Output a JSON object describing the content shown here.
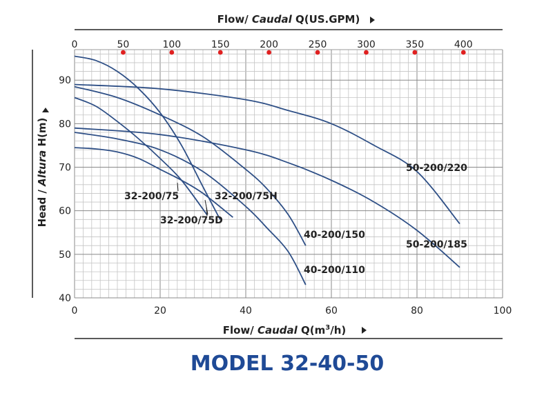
{
  "chart_data": {
    "type": "line",
    "title": "MODEL 32-40-50",
    "title_color": "#1f4a96",
    "curve_color": "#2e4f86",
    "gpm_marker_color": "#e02020",
    "top_axis": {
      "label_plain": "Flow/ ",
      "label_italic": "Caudal",
      "label_rest": " Q(US.GPM)",
      "ticks": [
        0,
        50,
        100,
        150,
        200,
        250,
        300,
        350,
        400
      ]
    },
    "x_axis": {
      "label_plain": "Flow/ ",
      "label_italic": "Caudal",
      "label_rest": " Q(m",
      "label_sup": "3",
      "label_end": "/h)",
      "range": [
        0,
        100
      ],
      "ticks": [
        0,
        20,
        40,
        60,
        80,
        100
      ]
    },
    "y_axis": {
      "label_plain": "Head / ",
      "label_italic": "Altura",
      "label_rest": " H(m)",
      "range": [
        40,
        97
      ],
      "ticks": [
        40,
        50,
        60,
        70,
        80,
        90
      ]
    },
    "series": [
      {
        "name": "32-200/75D",
        "x": [
          0,
          5,
          10,
          15,
          20,
          25,
          30,
          34
        ],
        "y": [
          95.5,
          94.5,
          92,
          88,
          82.5,
          75,
          65.5,
          58
        ]
      },
      {
        "name": "32-200/75",
        "x": [
          0,
          5,
          10,
          15,
          20,
          25,
          31
        ],
        "y": [
          86,
          84,
          80.5,
          76.5,
          72,
          67,
          59
        ]
      },
      {
        "name": "32-200/75H",
        "x": [
          0,
          5,
          10,
          15,
          20,
          25,
          30,
          37
        ],
        "y": [
          74.5,
          74.2,
          73.5,
          72,
          69.5,
          67,
          64,
          58.5
        ]
      },
      {
        "name": "40-200/110",
        "x": [
          0,
          10,
          20,
          30,
          40,
          45,
          50,
          54
        ],
        "y": [
          78,
          76.5,
          74,
          69,
          61,
          56,
          50.5,
          43
        ]
      },
      {
        "name": "40-200/150",
        "x": [
          0,
          10,
          20,
          30,
          40,
          45,
          50,
          54
        ],
        "y": [
          88.5,
          86,
          82,
          77,
          69.5,
          65,
          59,
          52
        ]
      },
      {
        "name": "50-200/185",
        "x": [
          0,
          20,
          40,
          50,
          60,
          70,
          80,
          90
        ],
        "y": [
          79,
          77.5,
          74,
          71,
          67,
          62,
          55.5,
          47
        ]
      },
      {
        "name": "50-200/220",
        "x": [
          0,
          20,
          40,
          50,
          60,
          70,
          80,
          90
        ],
        "y": [
          89,
          88,
          85.5,
          83,
          80,
          75,
          69,
          57
        ]
      }
    ]
  }
}
